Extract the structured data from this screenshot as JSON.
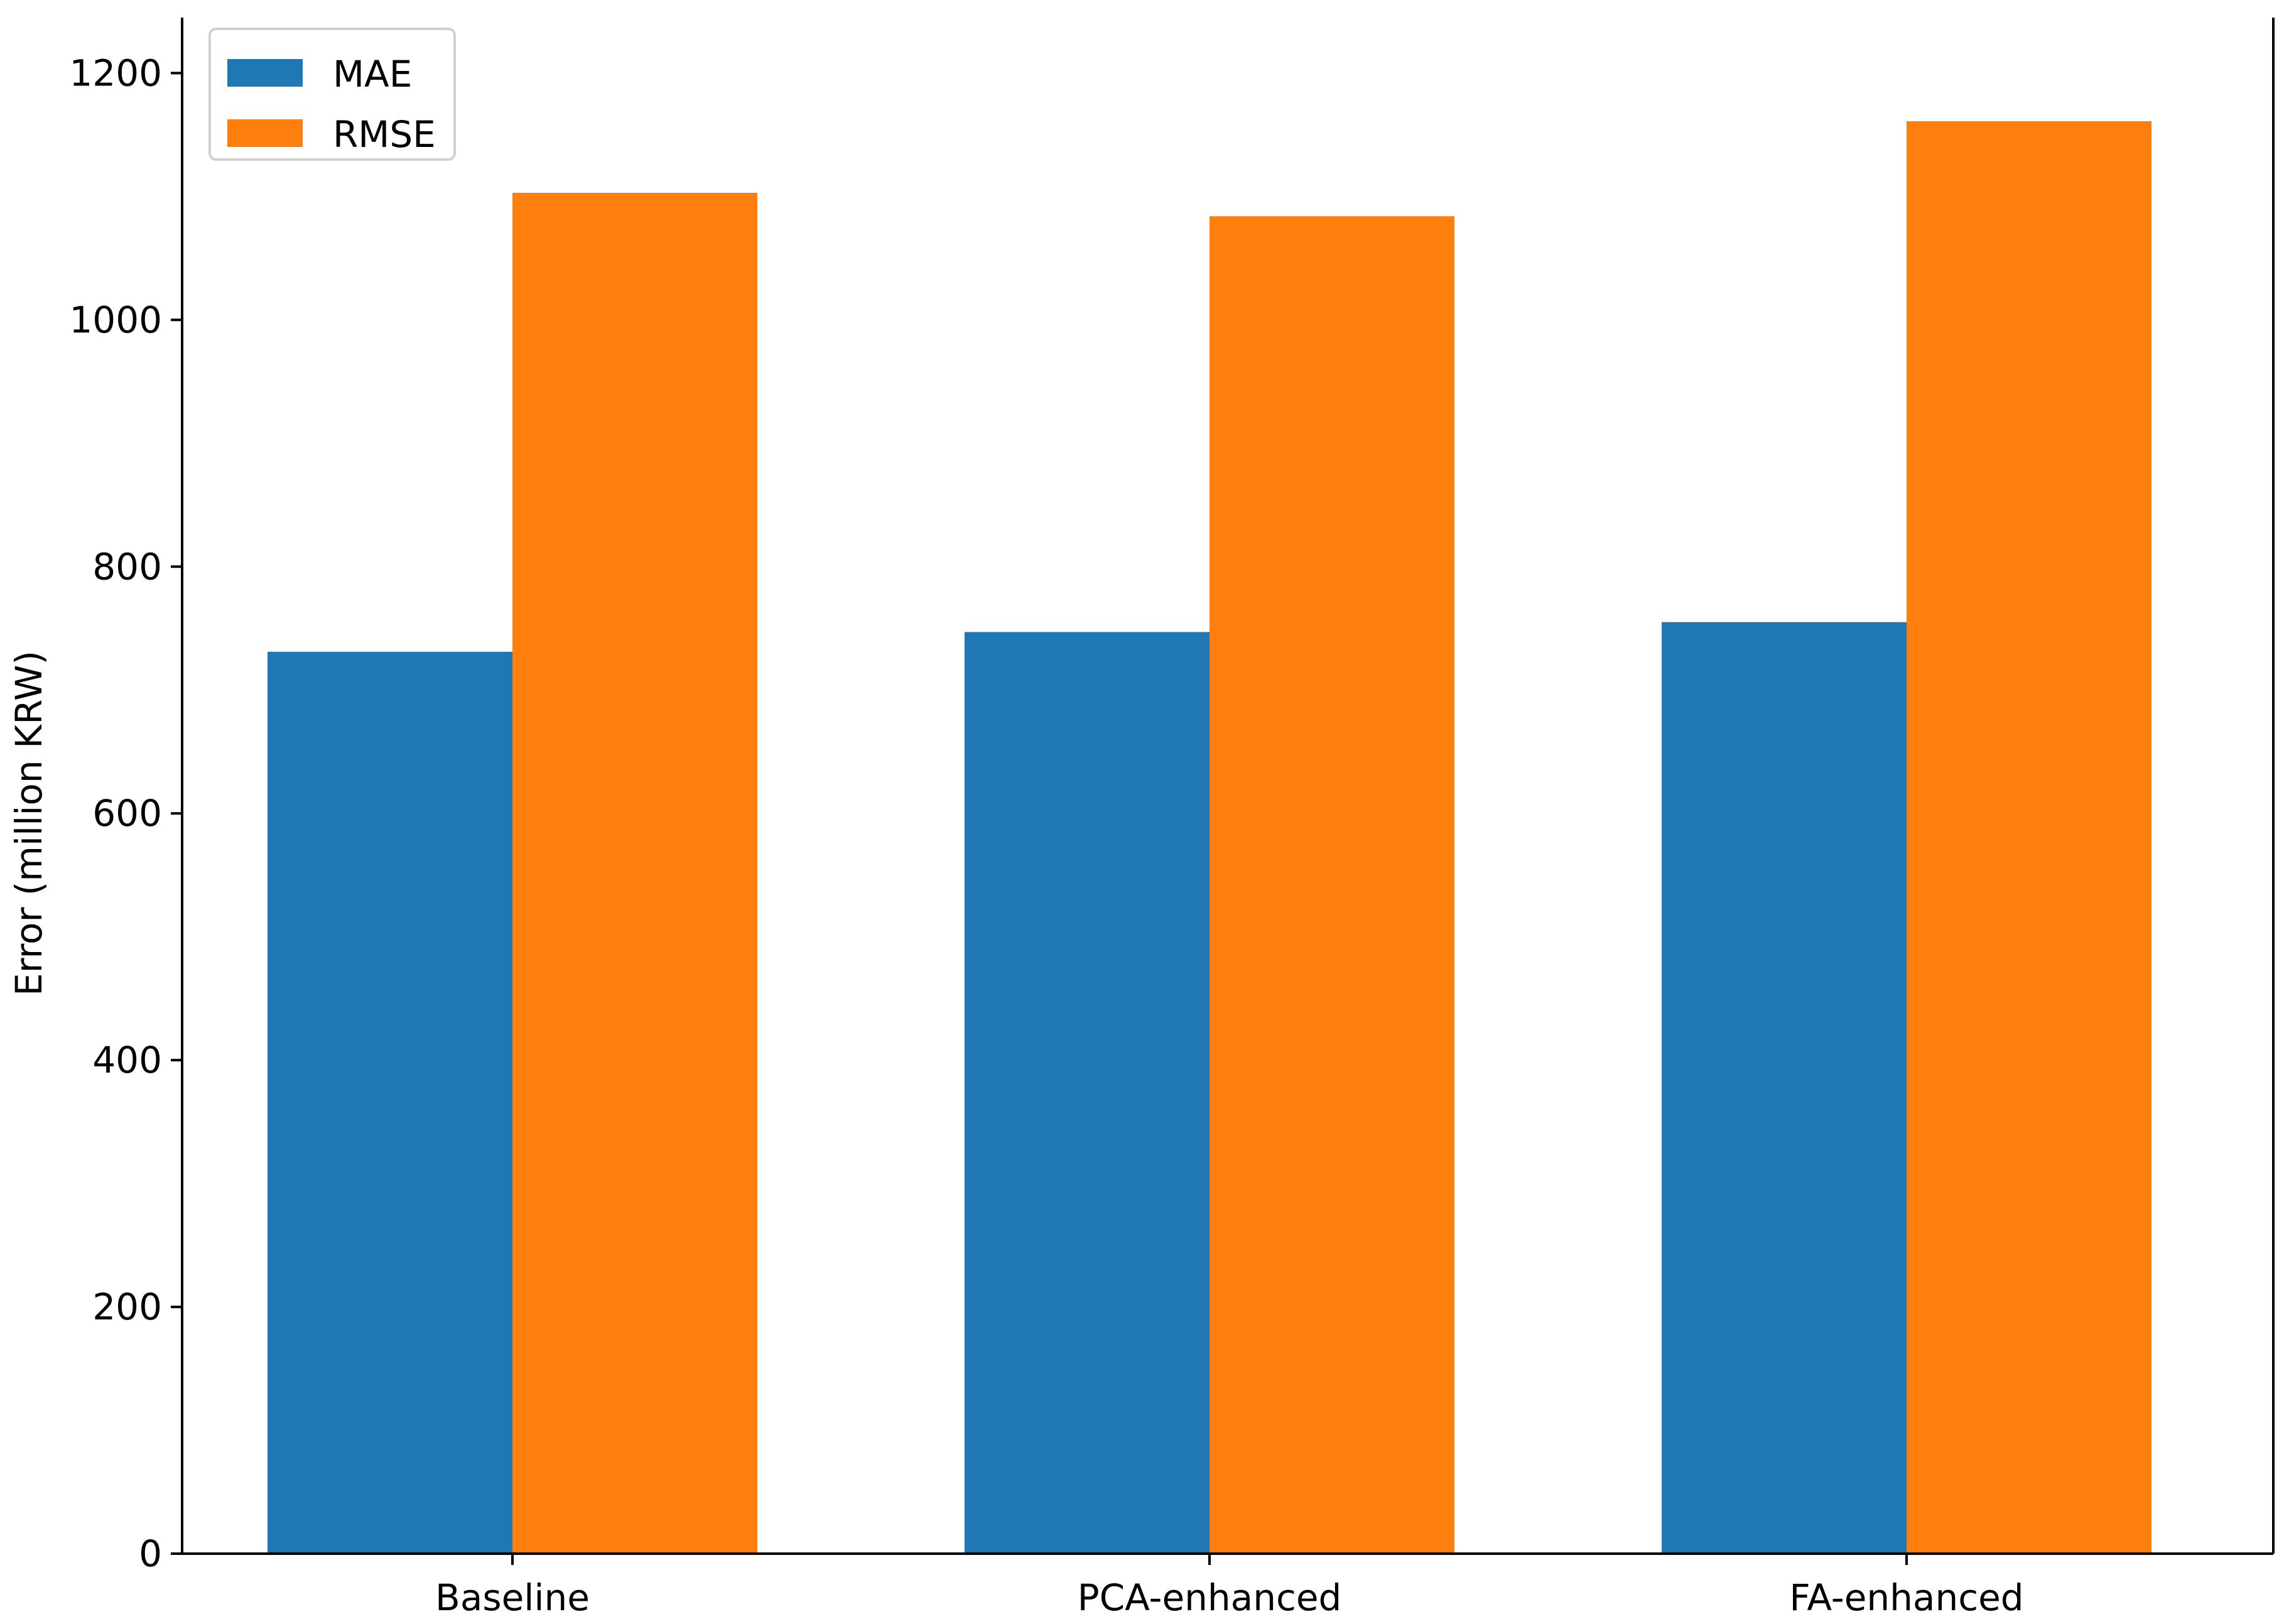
{
  "chart_data": {
    "type": "bar",
    "title": "",
    "xlabel": "",
    "ylabel": "Error (million KRW)",
    "categories": [
      "Baseline",
      "PCA-enhanced",
      "FA-enhanced"
    ],
    "series": [
      {
        "name": "MAE",
        "color": "#1f77b4",
        "values": [
          731,
          747,
          755
        ]
      },
      {
        "name": "RMSE",
        "color": "#ff7f0e",
        "values": [
          1103,
          1084,
          1161
        ]
      }
    ],
    "ylim": [
      0,
      1245
    ],
    "yticks": [
      0,
      200,
      400,
      600,
      800,
      1000,
      1200
    ],
    "ytick_labels": [
      "0",
      "200",
      "400",
      "600",
      "800",
      "1000",
      "1200"
    ],
    "grid": false,
    "legend": "top-left",
    "axis_color": "#000000"
  }
}
